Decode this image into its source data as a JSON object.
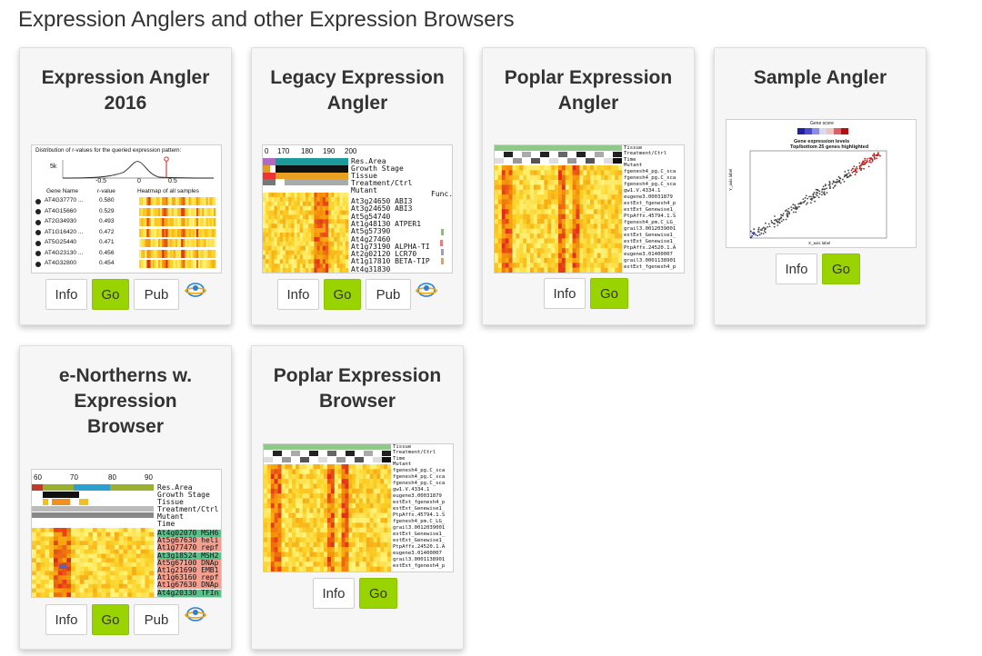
{
  "page": {
    "heading": "Expression Anglers and other Expression Browsers"
  },
  "buttons": {
    "info": "Info",
    "go": "Go",
    "pub": "Pub"
  },
  "colors": {
    "go": "#9ad400",
    "heat_low": "#fff27a",
    "heat_mid": "#f7b000",
    "heat_high": "#e0201a"
  },
  "cards": [
    {
      "title": "Expression Angler 2016",
      "preview": {
        "heading": "Distribution of r-values for the queried expression pattern:",
        "axis_y": "5k",
        "axis_ticks": [
          "-0.5",
          "0",
          "0.5"
        ],
        "columns": [
          "Gene Name",
          "r-value",
          "Heatmap of all samples"
        ],
        "rows": [
          {
            "gene": "AT4G37770 ...",
            "r": "0.580"
          },
          {
            "gene": "AT4G15660",
            "r": "0.529"
          },
          {
            "gene": "AT2G34930",
            "r": "0.493"
          },
          {
            "gene": "AT1G16420 ...",
            "r": "0.472"
          },
          {
            "gene": "AT5G25440",
            "r": "0.471"
          },
          {
            "gene": "AT4G23130 ...",
            "r": "0.456"
          },
          {
            "gene": "AT4G32800",
            "r": "0.454"
          }
        ]
      }
    },
    {
      "title": "Legacy Expression Angler",
      "preview": {
        "ticks": [
          "0",
          "170",
          "180",
          "190",
          "200"
        ],
        "strip_labels": [
          "Res.Area",
          "Growth Stage",
          "Tissue",
          "Treatment/Ctrl",
          "Mutant"
        ],
        "func_label": "Func.",
        "genes": [
          "At3g24650 ABI3",
          "At3g24650 ABI3",
          "At5g54740",
          "At1g48130 ATPER1",
          "At5g57390",
          "At4g27460",
          "At1g73190 ALPHA-TI",
          "At2g02120 LCR70",
          "At1g17810 BETA-TIP",
          "At4g31830"
        ]
      }
    },
    {
      "title": "Poplar Expression Angler",
      "preview": {
        "strip_labels": [
          "Tissue",
          "Treatment/Ctrl",
          "Time",
          "Mutant"
        ],
        "genes": [
          "fgenesh4_pg.C_sca",
          "fgenesh4_pg.C_sca",
          "fgenesh4_pg.C_sca",
          "gw1.V.4334.1",
          "eugene3.00031879",
          "estExt_fgenesh4_p",
          "estExt_Genewise1_",
          "PtpAffx.45794.1.S",
          "fgenesh4_pm.C_LG_",
          "grail3.0012039001",
          "estExt_Genewise1_",
          "estExt_Genewise1_",
          "PtpAffx.24520.1.A",
          "eugene3.01400007",
          "grail3.0001138901",
          "estExt_fgenesh4_p"
        ]
      }
    },
    {
      "title": "Sample Angler",
      "preview": {
        "legend_title": "Gene score",
        "plot_title": "Gene expression levels",
        "plot_subtitle": "Top/bottom 25 genes highlighted",
        "y_label": "Y_axis label",
        "x_label": "X_axis label"
      }
    },
    {
      "title": "e-Northerns w. Expression Browser",
      "preview": {
        "ticks": [
          "60",
          "70",
          "80",
          "90"
        ],
        "strip_labels": [
          "Res.Area",
          "Growth Stage",
          "Tissue",
          "Treatment/Ctrl",
          "Mutant",
          "Time"
        ],
        "genes": [
          "At4g02070 MSH6",
          "At5g67630 heli",
          "At1g77470 repf",
          "At3g18524 MSH2",
          "At5g67100 DNAp",
          "At1g21690 EMB1",
          "At1g63160 repf",
          "At1g67630 DNAp",
          "At4g20330 TFIn"
        ]
      }
    },
    {
      "title": "Poplar Expression Browser",
      "preview": {
        "strip_labels": [
          "Tissue",
          "Treatment/Ctrl",
          "Time",
          "Mutant"
        ],
        "genes": [
          "fgenesh4_pg.C_sca",
          "fgenesh4_pg.C_sca",
          "fgenesh4_pg.C_sca",
          "gw1.V.4334.1",
          "eugene3.00031879",
          "estExt_fgenesh4_p",
          "estExt_Genewise1_",
          "PtpAffx.45794.1.S",
          "fgenesh4_pm.C_LG_",
          "grail3.0012039001",
          "estExt_Genewise1_",
          "estExt_Genewise1_",
          "PtpAffx.24520.1.A",
          "eugene3.01400007",
          "grail3.0001138901",
          "estExt_fgenesh4_p"
        ]
      }
    }
  ]
}
